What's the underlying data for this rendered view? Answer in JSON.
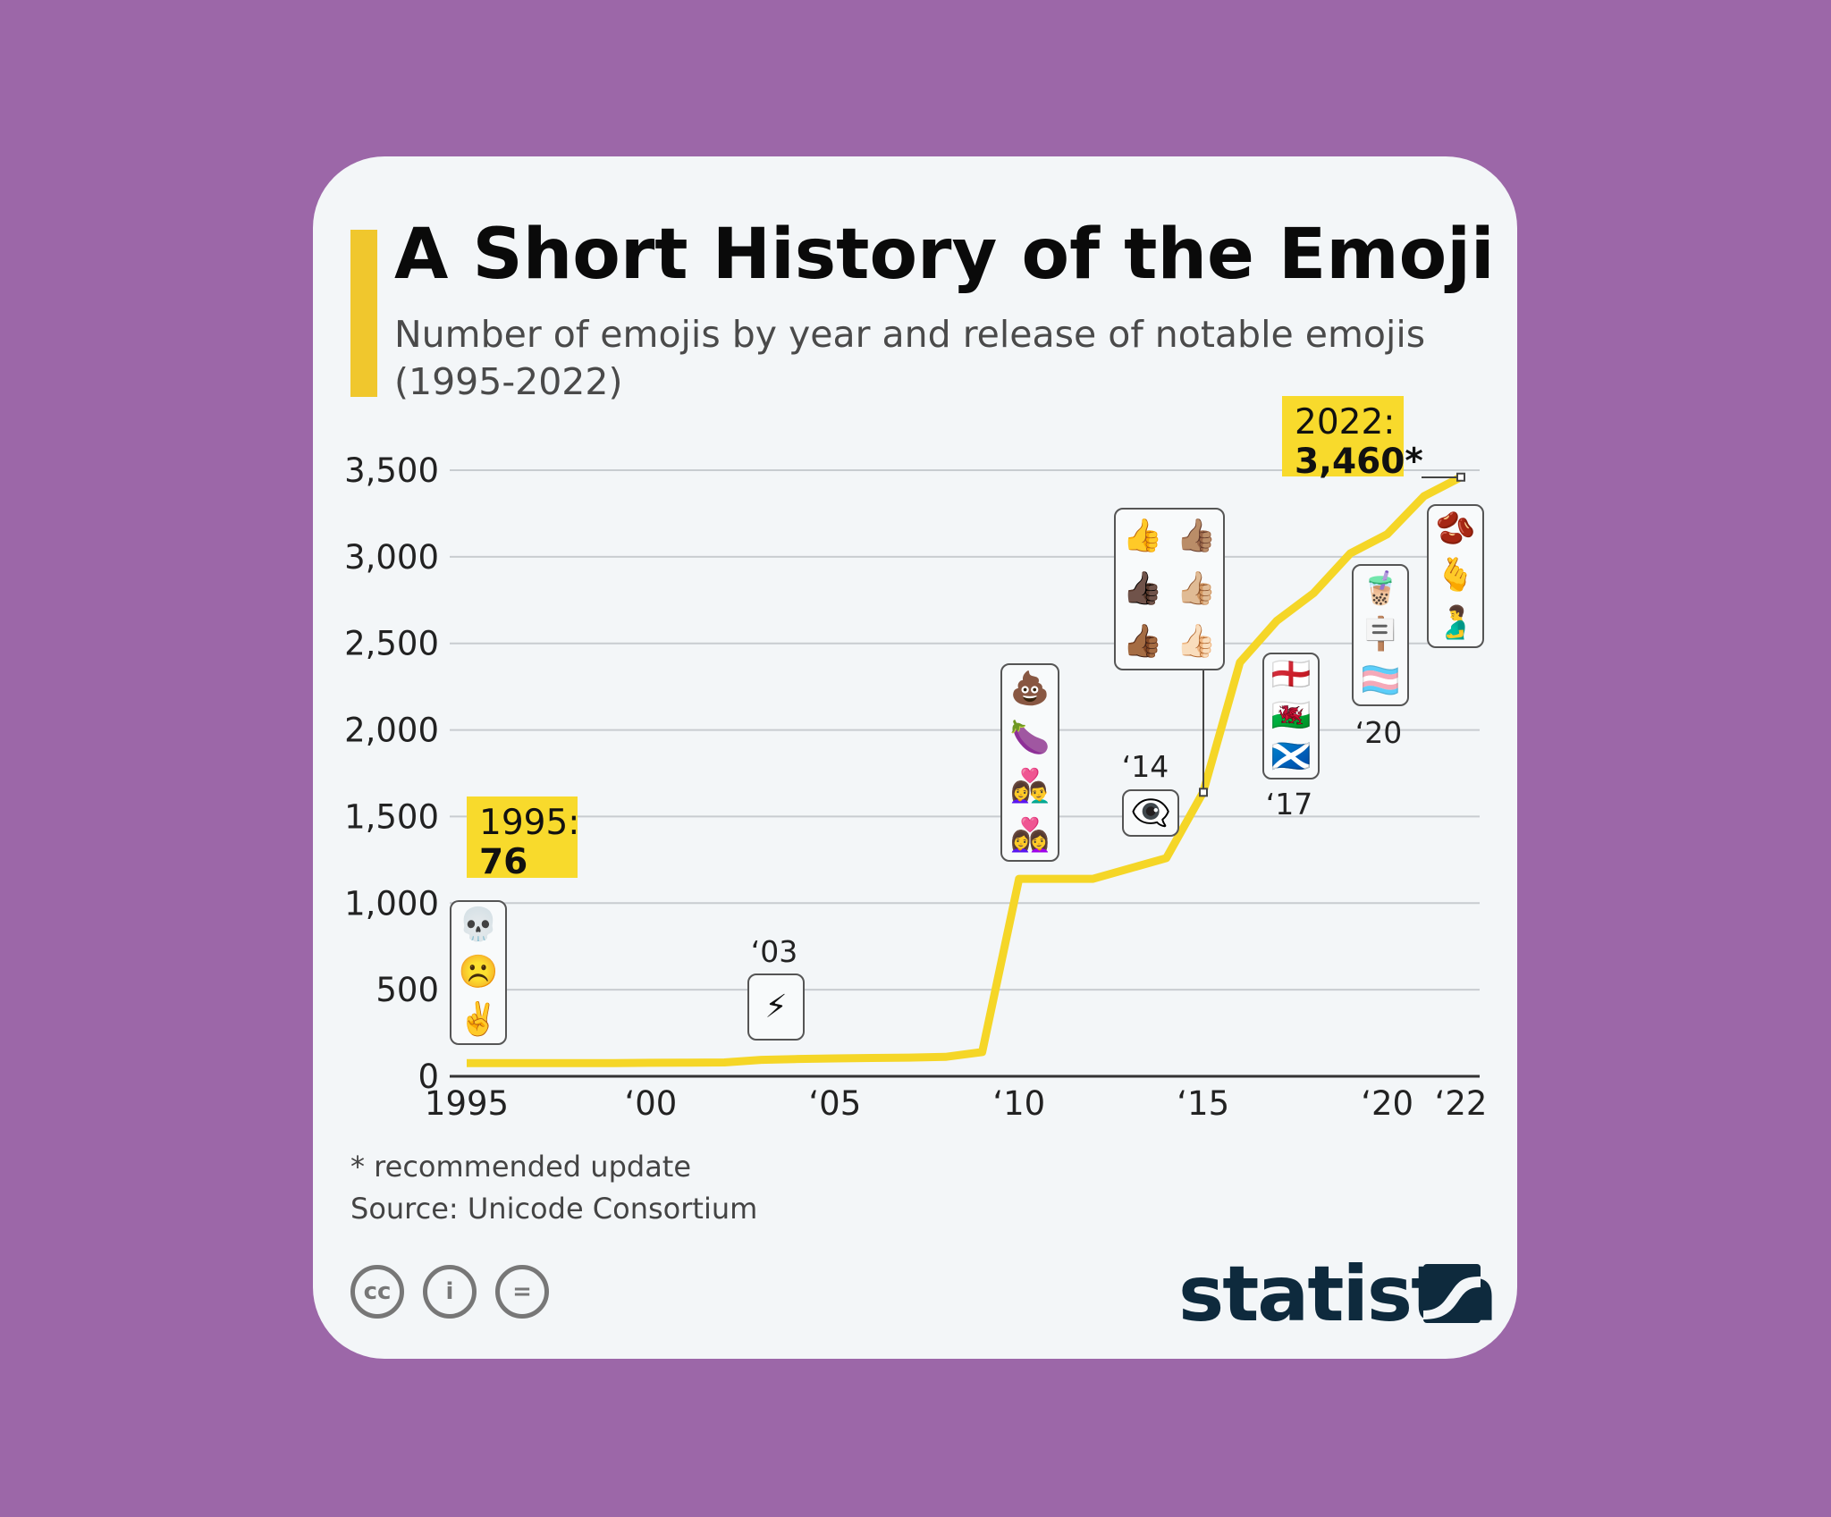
{
  "header": {
    "title": "A Short History of the Emoji",
    "subtitle": "Number of emojis by year and release of notable emojis (1995-2022)"
  },
  "colors": {
    "background": "#9c67a8",
    "card": "#f3f6f8",
    "accent": "#f0c72d",
    "line": "#f5d627",
    "highlight": "#f8da2c",
    "brand": "#0e2a3d"
  },
  "chart_data": {
    "type": "line",
    "title": "A Short History of the Emoji",
    "xlabel": "",
    "ylabel": "Number of emojis",
    "x": [
      1995,
      1996,
      1997,
      1998,
      1999,
      2000,
      2001,
      2002,
      2003,
      2004,
      2005,
      2006,
      2007,
      2008,
      2009,
      2010,
      2011,
      2012,
      2013,
      2014,
      2015,
      2016,
      2017,
      2018,
      2019,
      2020,
      2021,
      2022
    ],
    "values": [
      76,
      76,
      76,
      76,
      76,
      78,
      79,
      80,
      95,
      100,
      103,
      106,
      108,
      112,
      140,
      1140,
      1140,
      1140,
      1200,
      1260,
      1640,
      2390,
      2630,
      2790,
      3020,
      3130,
      3350,
      3460
    ],
    "ylim": [
      0,
      3500
    ],
    "yticks": [
      0,
      500,
      1000,
      1500,
      2000,
      2500,
      3000,
      3500
    ],
    "ytick_labels": [
      "0",
      "500",
      "1,000",
      "1,500",
      "2,000",
      "2,500",
      "3,000",
      "3,500"
    ],
    "xticks": [
      1995,
      2000,
      2005,
      2010,
      2015,
      2020,
      2022
    ],
    "xtick_labels": [
      "1995",
      "‘00",
      "‘05",
      "‘10",
      "‘15",
      "‘20",
      "‘22"
    ],
    "grid": true,
    "annotations": {
      "start": {
        "label": "1995:",
        "value": "76"
      },
      "end": {
        "label": "2022:",
        "value": "3,460*"
      }
    }
  },
  "callouts": [
    {
      "year_label": "",
      "emojis": [
        "💀",
        "☹️",
        "✌️"
      ]
    },
    {
      "year_label": "‘03",
      "emojis": [
        "⚡"
      ]
    },
    {
      "year_label": "",
      "emojis": [
        "💩",
        "🍆",
        "👩‍❤️‍👨",
        "👩‍❤️‍👩"
      ]
    },
    {
      "year_label": "‘14",
      "emojis": [
        "👁️‍🗨️"
      ]
    },
    {
      "year_label": "",
      "emojis": [
        "👍",
        "👍🏽",
        "👍🏿",
        "👍🏼",
        "👍🏾",
        "👍🏻"
      ]
    },
    {
      "year_label": "‘17",
      "emojis": [
        "🏴󠁧󠁢󠁥󠁮󠁧󠁿",
        "🏴󠁧󠁢󠁷󠁬󠁳󠁿",
        "🏴󠁧󠁢󠁳󠁣󠁴󠁿"
      ]
    },
    {
      "year_label": "‘20",
      "emojis": [
        "🧋",
        "🪧",
        "🏳️‍⚧️"
      ]
    },
    {
      "year_label": "",
      "emojis": [
        "🫘",
        "🫰",
        "🫃"
      ]
    }
  ],
  "footer": {
    "note": "* recommended update",
    "source": "Source: Unicode Consortium",
    "license_icons": [
      "cc-icon",
      "by-icon",
      "nd-icon"
    ],
    "license_glyphs": [
      "cc",
      "i",
      "="
    ],
    "brand": "statista"
  }
}
